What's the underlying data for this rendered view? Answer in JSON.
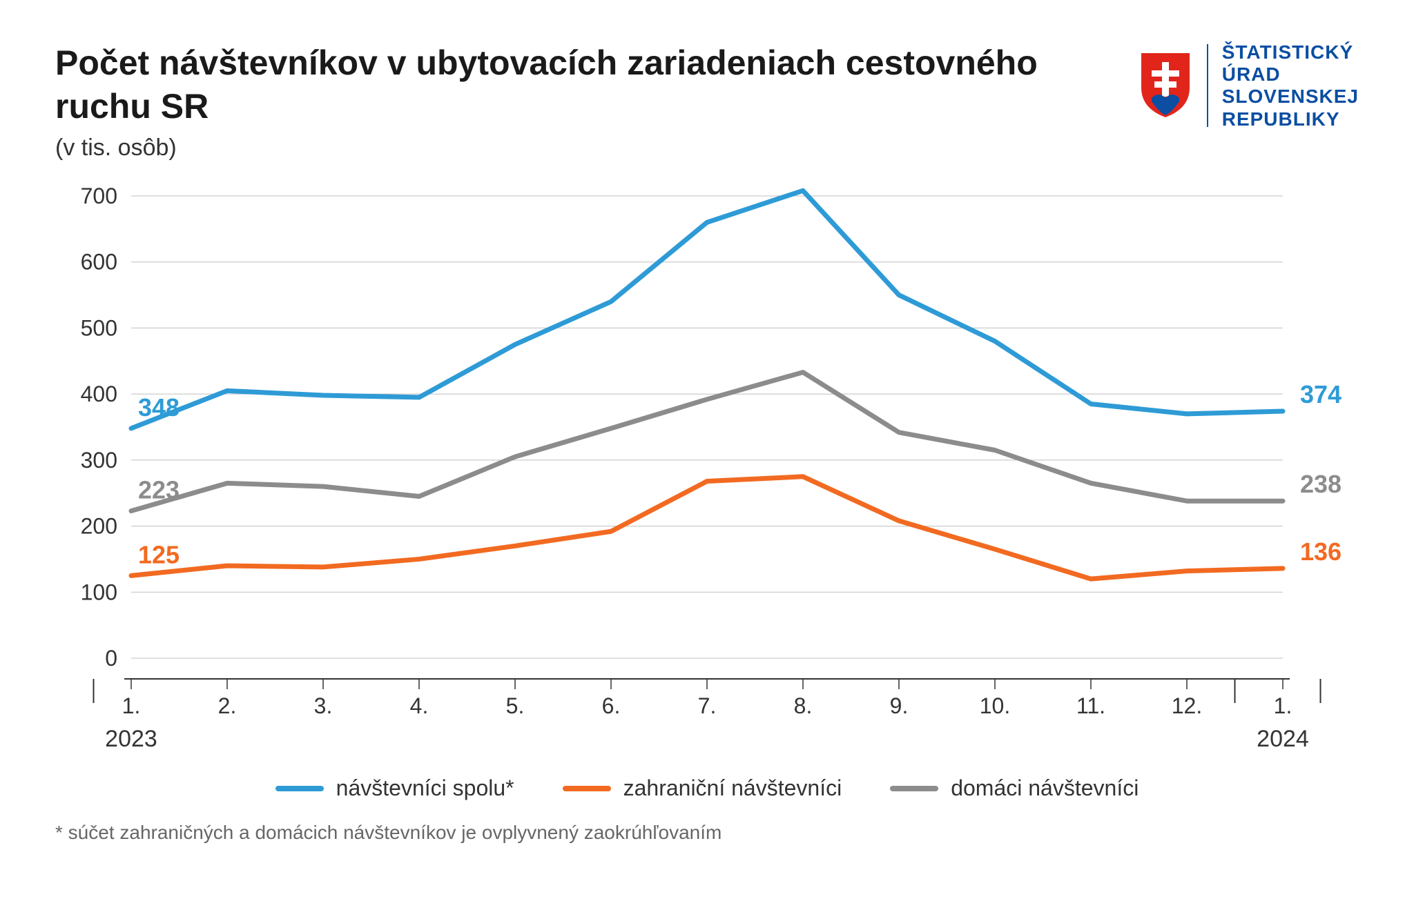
{
  "title": "Počet návštevníkov v ubytovacích zariadeniach cestovného ruchu SR",
  "subtitle": "(v tis. osôb)",
  "logo": {
    "line1": "ŠTATISTICKÝ",
    "line2": "ÚRAD",
    "line3": "SLOVENSKEJ",
    "line4": "REPUBLIKY",
    "shield_fill": "#e1251b",
    "shield_cross": "#ffffff",
    "text_color": "#0b4ea2"
  },
  "chart": {
    "type": "line",
    "background_color": "#ffffff",
    "grid_color": "#bfbfbf",
    "axis_color": "#333333",
    "ylim": [
      0,
      700
    ],
    "ytick_step": 100,
    "yticks": [
      0,
      100,
      200,
      300,
      400,
      500,
      600,
      700
    ],
    "x_labels": [
      "1.",
      "2.",
      "3.",
      "4.",
      "5.",
      "6.",
      "7.",
      "8.",
      "9.",
      "10.",
      "11.",
      "12.",
      "1."
    ],
    "year_left": "2023",
    "year_right": "2024",
    "line_width": 7,
    "tick_fontsize": 32,
    "label_fontsize": 34,
    "endpoint_label_fontsize": 36,
    "series": [
      {
        "key": "total",
        "label": "návštevníci spolu*",
        "color": "#2e9bd6",
        "values": [
          348,
          405,
          398,
          395,
          475,
          540,
          660,
          708,
          550,
          480,
          385,
          370,
          374
        ],
        "start_label": "348",
        "end_label": "374"
      },
      {
        "key": "foreign",
        "label": "zahraniční návštevníci",
        "color": "#f26a21",
        "values": [
          125,
          140,
          138,
          150,
          170,
          192,
          268,
          275,
          208,
          165,
          120,
          132,
          136
        ],
        "start_label": "125",
        "end_label": "136"
      },
      {
        "key": "domestic",
        "label": "domáci návštevníci",
        "color": "#8c8c8c",
        "values": [
          223,
          265,
          260,
          245,
          305,
          348,
          392,
          433,
          342,
          315,
          265,
          238,
          238
        ],
        "start_label": "223",
        "end_label": "238"
      }
    ]
  },
  "footnote": "* súčet zahraničných a domácich návštevníkov je ovplyvnený zaokrúhľovaním"
}
